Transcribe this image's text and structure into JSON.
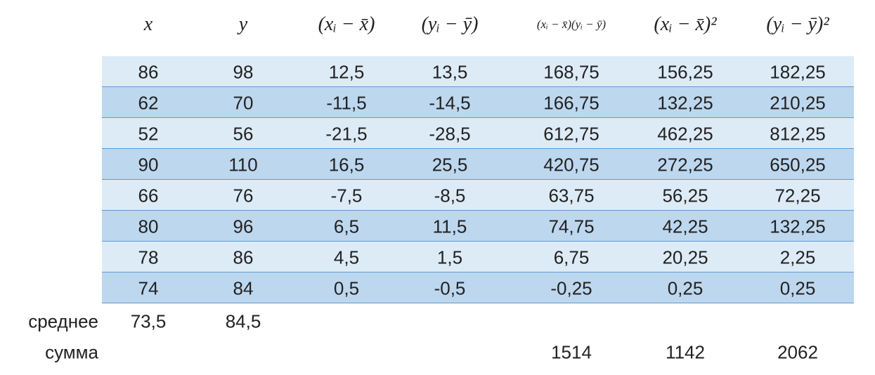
{
  "table": {
    "header": [
      "x",
      "y",
      "(xᵢ − x̄)",
      "(yᵢ − ȳ)",
      "(xᵢ − x̄)(yᵢ − ȳ)",
      "(xᵢ − x̄)²",
      "(yᵢ − ȳ)²"
    ],
    "rows": [
      [
        "86",
        "98",
        "12,5",
        "13,5",
        "168,75",
        "156,25",
        "182,25"
      ],
      [
        "62",
        "70",
        "-11,5",
        "-14,5",
        "166,75",
        "132,25",
        "210,25"
      ],
      [
        "52",
        "56",
        "-21,5",
        "-28,5",
        "612,75",
        "462,25",
        "812,25"
      ],
      [
        "90",
        "110",
        "16,5",
        "25,5",
        "420,75",
        "272,25",
        "650,25"
      ],
      [
        "66",
        "76",
        "-7,5",
        "-8,5",
        "63,75",
        "56,25",
        "72,25"
      ],
      [
        "80",
        "96",
        "6,5",
        "11,5",
        "74,75",
        "42,25",
        "132,25"
      ],
      [
        "78",
        "86",
        "4,5",
        "1,5",
        "6,75",
        "20,25",
        "2,25"
      ],
      [
        "74",
        "84",
        "0,5",
        "-0,5",
        "-0,25",
        "0,25",
        "0,25"
      ]
    ],
    "summary": [
      {
        "label": "среднее",
        "cells": [
          "73,5",
          "84,5",
          null,
          null,
          null,
          null,
          null
        ]
      },
      {
        "label": "сумма",
        "cells": [
          null,
          null,
          null,
          null,
          "1514",
          "1142",
          "2062"
        ]
      }
    ]
  }
}
